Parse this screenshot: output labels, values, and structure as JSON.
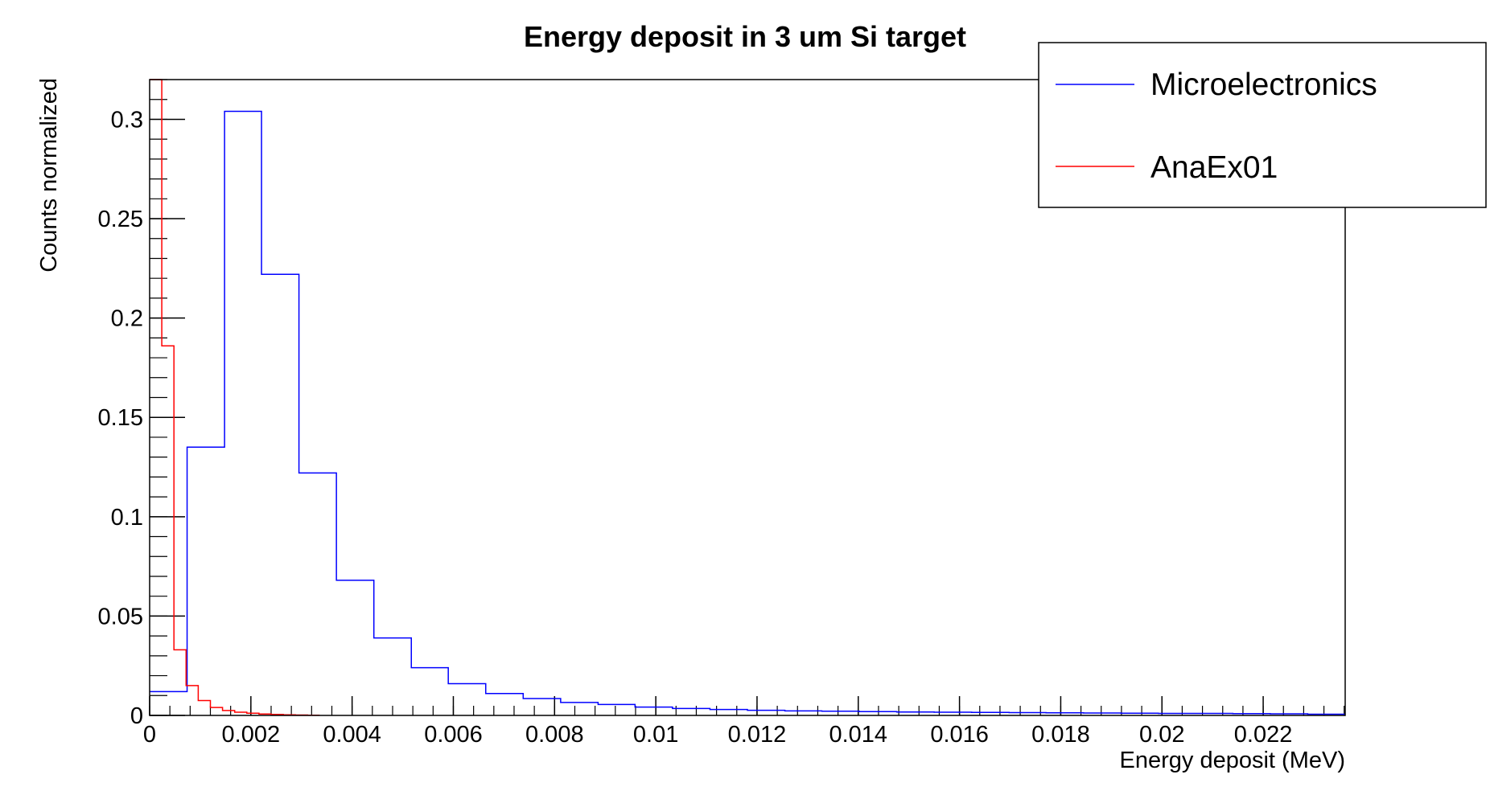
{
  "chart_data": {
    "type": "histogram",
    "title": "Energy deposit in 3 um Si target",
    "xlabel": "Energy deposit (MeV)",
    "ylabel": "Counts normalized",
    "xlim": [
      0,
      0.02362
    ],
    "ylim": [
      0,
      0.32
    ],
    "xticks": [
      0,
      0.002,
      0.004,
      0.006,
      0.008,
      0.01,
      0.012,
      0.014,
      0.016,
      0.018,
      0.02,
      0.022
    ],
    "xtick_labels": [
      "0",
      "0.002",
      "0.004",
      "0.006",
      "0.008",
      "0.01",
      "0.012",
      "0.014",
      "0.016",
      "0.018",
      "0.02",
      "0.022"
    ],
    "yticks": [
      0,
      0.05,
      0.1,
      0.15,
      0.2,
      0.25,
      0.3
    ],
    "ytick_labels": [
      "0",
      "0.05",
      "0.1",
      "0.15",
      "0.2",
      "0.25",
      "0.3"
    ],
    "grid": false,
    "legend_position": "top-right",
    "series": [
      {
        "name": "Microelectronics",
        "color": "#0000ff",
        "bin_edges": [
          0,
          0.00074,
          0.00148,
          0.00221,
          0.00295,
          0.00369,
          0.00443,
          0.00517,
          0.0059,
          0.00664,
          0.00738,
          0.00812,
          0.00886,
          0.00959,
          0.01033,
          0.01107,
          0.01181,
          0.01255,
          0.01328,
          0.01402,
          0.01476,
          0.0155,
          0.01624,
          0.01698,
          0.01771,
          0.01845,
          0.01919,
          0.01993,
          0.02067,
          0.0214,
          0.02214,
          0.02288,
          0.02362
        ],
        "values": [
          0.012,
          0.135,
          0.304,
          0.222,
          0.122,
          0.068,
          0.039,
          0.024,
          0.016,
          0.011,
          0.0085,
          0.0065,
          0.0055,
          0.0042,
          0.0035,
          0.003,
          0.0026,
          0.0023,
          0.0021,
          0.0019,
          0.0017,
          0.0016,
          0.0015,
          0.0014,
          0.0013,
          0.0012,
          0.0011,
          0.001,
          0.001,
          0.0009,
          0.0008,
          0.0006
        ]
      },
      {
        "name": "AnaEx01",
        "color": "#ff0000",
        "bin_edges": [
          0,
          0.00024,
          0.00048,
          0.00072,
          0.00096,
          0.0012,
          0.00144,
          0.00168,
          0.00192,
          0.00216,
          0.0024,
          0.00264,
          0.00288,
          0.00312,
          0.00336
        ],
        "values": [
          0.32,
          0.186,
          0.033,
          0.015,
          0.0075,
          0.004,
          0.0025,
          0.0016,
          0.0011,
          0.0007,
          0.0005,
          0.0003,
          0.0002,
          0.0001
        ]
      }
    ]
  }
}
